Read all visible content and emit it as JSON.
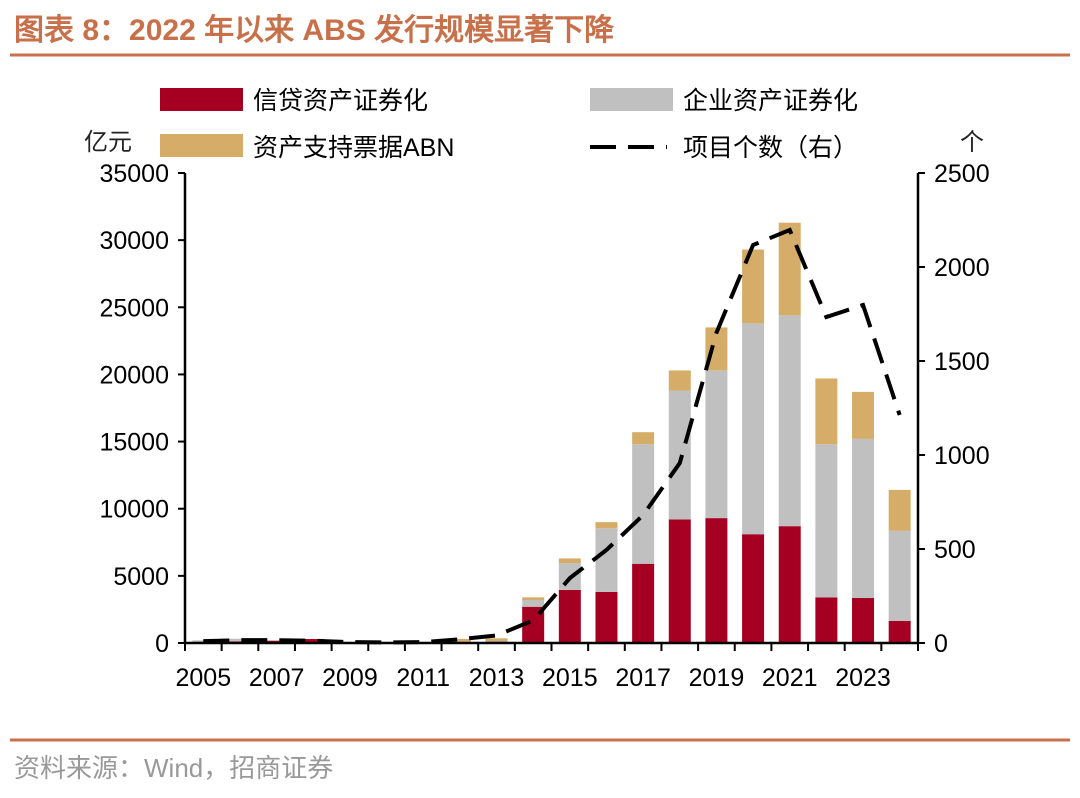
{
  "title": "图表 8：2022 年以来 ABS 发行规模显著下降",
  "source": "资料来源：Wind，招商证券",
  "colors": {
    "title": "#c8704a",
    "rule": "#c8704a",
    "credit": "#a50021",
    "corporate": "#c0c0c0",
    "abn": "#d6ad68",
    "line": "#000000"
  },
  "chart_data": {
    "type": "bar",
    "stacked": true,
    "categories": [
      "2005",
      "2006",
      "2007",
      "2008",
      "2009",
      "2010",
      "2011",
      "2012",
      "2013",
      "2014",
      "2015",
      "2016",
      "2017",
      "2018",
      "2019",
      "2020",
      "2021",
      "2022",
      "2023",
      "2024"
    ],
    "x_tick_labels": [
      "2005",
      "2007",
      "2009",
      "2011",
      "2013",
      "2015",
      "2017",
      "2019",
      "2021",
      "2023"
    ],
    "ylabel": "亿元",
    "y2label": "个",
    "ylim": [
      0,
      35000
    ],
    "y_ticks": [
      "0",
      "5000",
      "10000",
      "15000",
      "20000",
      "25000",
      "30000",
      "35000"
    ],
    "y2lim": [
      0,
      2500
    ],
    "y2_ticks": [
      "0",
      "500",
      "1000",
      "1500",
      "2000",
      "2500"
    ],
    "grid": false,
    "legend_position": "top",
    "series": [
      {
        "name": "信贷资产证券化",
        "kind": "bar",
        "color": "#a50021",
        "values": [
          50,
          120,
          180,
          300,
          0,
          0,
          0,
          50,
          100,
          2700,
          3950,
          3800,
          5900,
          9200,
          9300,
          8100,
          8700,
          3400,
          3350,
          1650
        ]
      },
      {
        "name": "企业资产证券化",
        "kind": "bar",
        "color": "#c0c0c0",
        "values": [
          150,
          200,
          20,
          0,
          0,
          0,
          0,
          0,
          50,
          500,
          2000,
          4750,
          8900,
          9600,
          11000,
          15700,
          15700,
          11400,
          11850,
          6700
        ]
      },
      {
        "name": "资产支持票据ABN",
        "kind": "bar",
        "color": "#d6ad68",
        "values": [
          0,
          0,
          0,
          0,
          0,
          0,
          0,
          250,
          200,
          200,
          350,
          450,
          900,
          1500,
          3200,
          5500,
          6900,
          4900,
          3500,
          3050
        ]
      },
      {
        "name": "项目个数（右）",
        "kind": "line",
        "axis": "right",
        "color": "#000000",
        "dash": true,
        "values": [
          10,
          15,
          15,
          12,
          5,
          3,
          5,
          20,
          40,
          120,
          345,
          495,
          680,
          957,
          1650,
          2117,
          2197,
          1734,
          1798,
          1213
        ]
      }
    ]
  }
}
